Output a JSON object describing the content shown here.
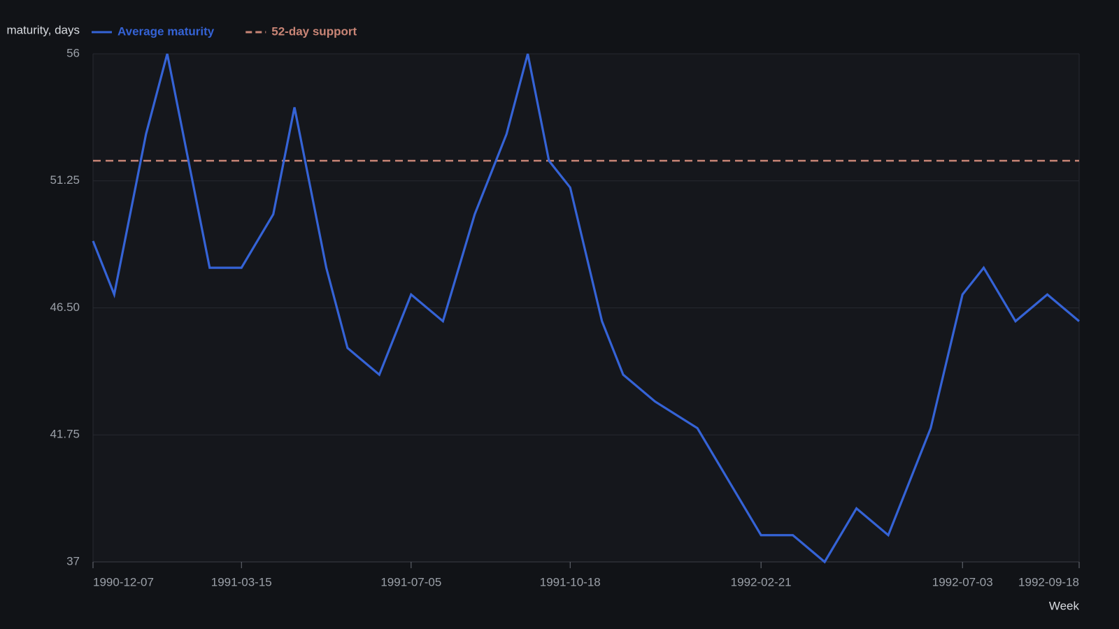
{
  "chart_data": {
    "type": "line",
    "y_label": "maturity, days",
    "x_label": "Week",
    "x": [
      "1990-12-07",
      "1990-12-21",
      "1991-01-11",
      "1991-01-25",
      "1991-02-22",
      "1991-03-15",
      "1991-04-05",
      "1991-04-19",
      "1991-05-10",
      "1991-05-24",
      "1991-06-14",
      "1991-07-05",
      "1991-07-26",
      "1991-08-16",
      "1991-09-06",
      "1991-09-20",
      "1991-10-04",
      "1991-10-18",
      "1991-11-08",
      "1991-11-22",
      "1991-12-13",
      "1992-01-10",
      "1992-02-21",
      "1992-03-13",
      "1992-04-03",
      "1992-04-24",
      "1992-05-15",
      "1992-06-12",
      "1992-07-03",
      "1992-07-17",
      "1992-08-07",
      "1992-08-28",
      "1992-09-18"
    ],
    "series": [
      {
        "name": "Average maturity",
        "color": "#3563d6",
        "values": [
          49,
          47,
          53,
          56,
          48,
          48,
          50,
          54,
          48,
          45,
          44,
          47,
          46,
          50,
          53,
          56,
          52,
          51,
          46,
          44,
          43,
          42,
          38,
          38,
          37,
          39,
          38,
          42,
          47,
          48,
          46,
          47,
          46
        ]
      }
    ],
    "reference_lines": [
      {
        "name": "52-day support",
        "value": 52,
        "color": "#c98576",
        "dashed": true
      }
    ],
    "xlim": [
      "1990-12-07",
      "1992-09-18"
    ],
    "xticks": [
      "1990-12-07",
      "1991-03-15",
      "1991-07-05",
      "1991-10-18",
      "1992-02-21",
      "1992-07-03",
      "1992-09-18"
    ],
    "ylim": [
      37,
      56
    ],
    "yticks": [
      37,
      41.75,
      {
        "value": 46.5,
        "label": "46.50"
      },
      51.25,
      56
    ],
    "grid": true
  }
}
